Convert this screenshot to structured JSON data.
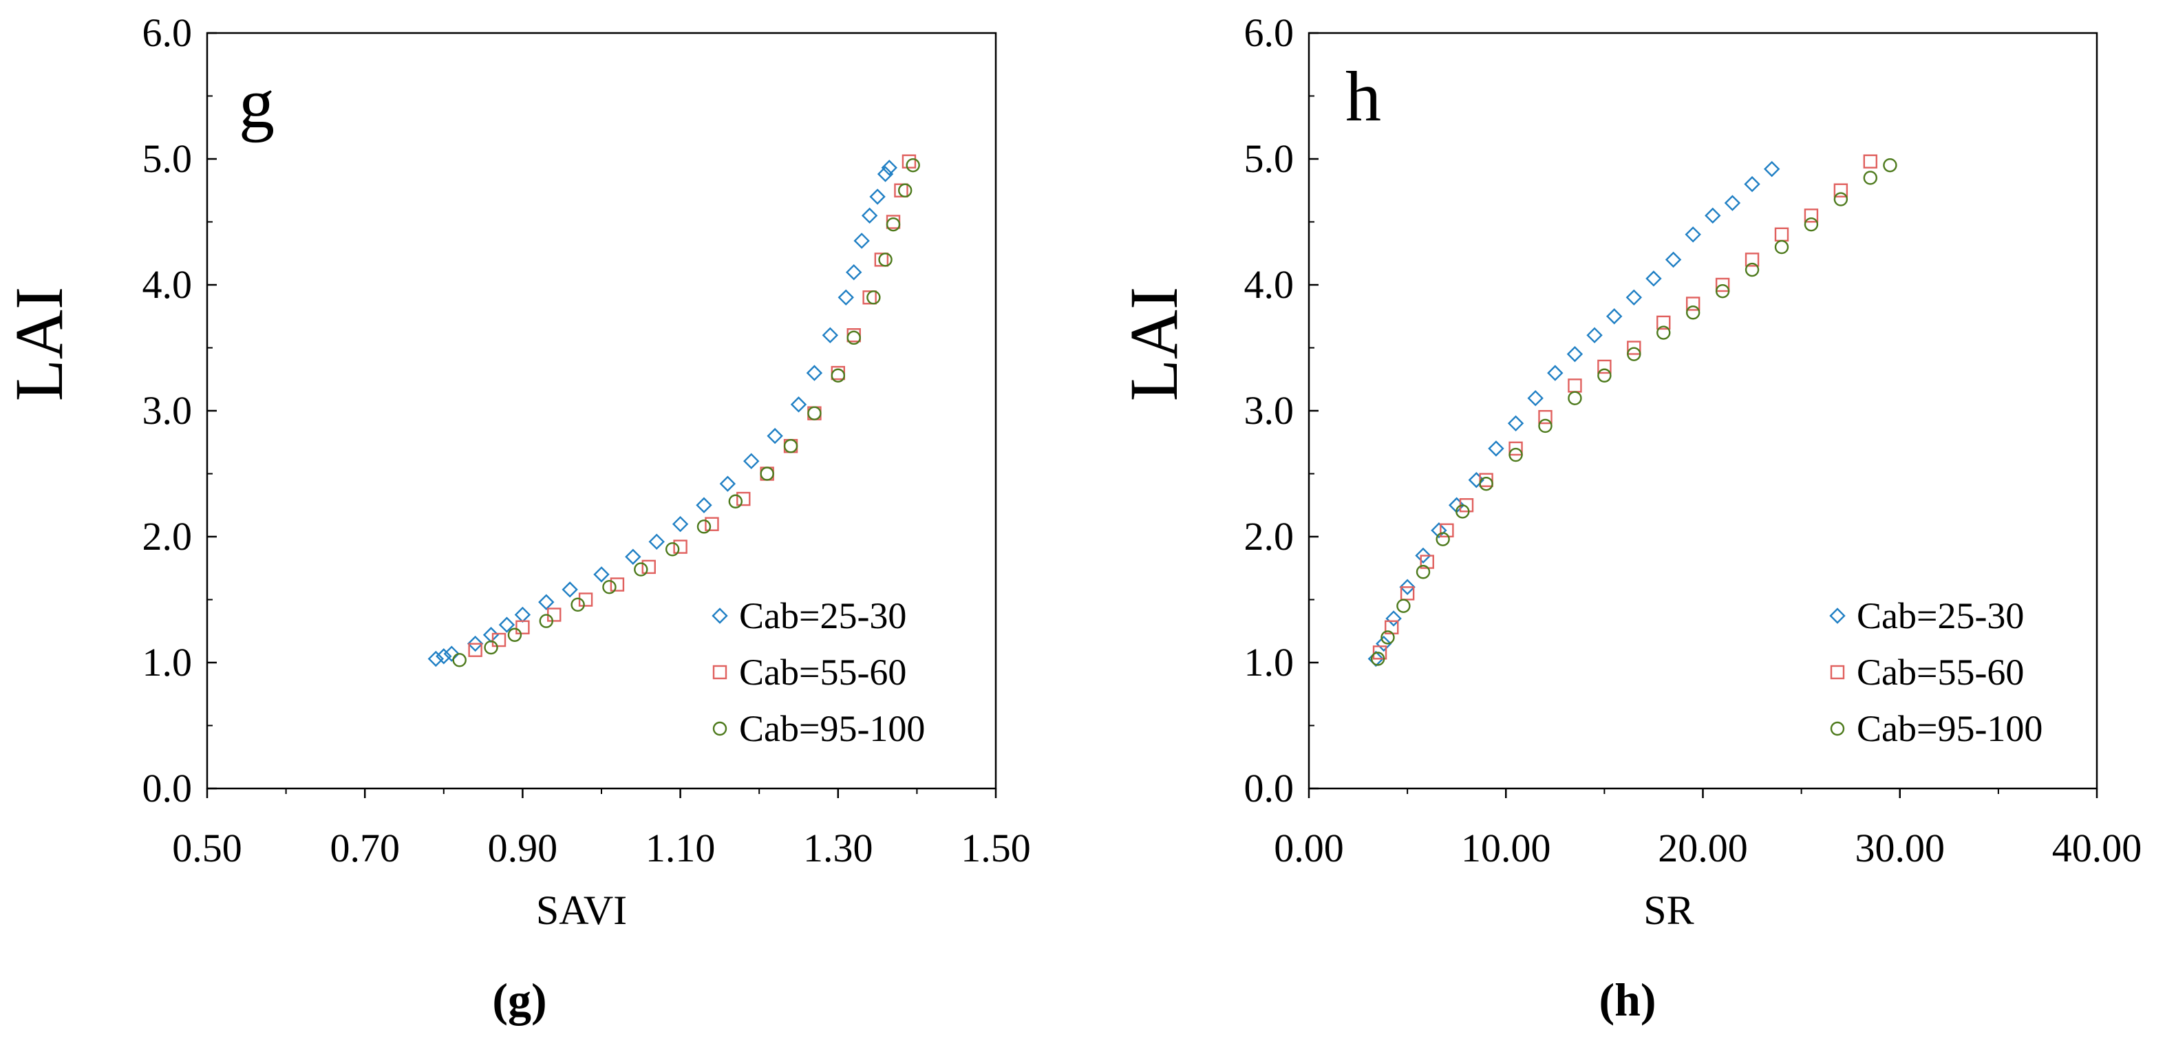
{
  "chart_data": [
    {
      "type": "scatter",
      "panel_label": "g",
      "caption": "(g)",
      "xlabel": "SAVI",
      "ylabel": "LAI",
      "xlim": [
        0.5,
        1.5
      ],
      "ylim": [
        0.0,
        6.0
      ],
      "xticks": [
        "0.50",
        "0.70",
        "0.90",
        "1.10",
        "1.30",
        "1.50"
      ],
      "yticks": [
        "0.0",
        "1.0",
        "2.0",
        "3.0",
        "4.0",
        "5.0",
        "6.0"
      ],
      "legend_position": "bottom-right",
      "series": [
        {
          "name": "Cab=25-30",
          "marker": "diamond",
          "color": "#1f7fc4",
          "points": [
            [
              0.79,
              1.03
            ],
            [
              0.8,
              1.05
            ],
            [
              0.81,
              1.07
            ],
            [
              0.84,
              1.15
            ],
            [
              0.86,
              1.22
            ],
            [
              0.88,
              1.3
            ],
            [
              0.9,
              1.38
            ],
            [
              0.93,
              1.48
            ],
            [
              0.96,
              1.58
            ],
            [
              1.0,
              1.7
            ],
            [
              1.04,
              1.84
            ],
            [
              1.07,
              1.96
            ],
            [
              1.1,
              2.1
            ],
            [
              1.13,
              2.25
            ],
            [
              1.16,
              2.42
            ],
            [
              1.19,
              2.6
            ],
            [
              1.22,
              2.8
            ],
            [
              1.25,
              3.05
            ],
            [
              1.27,
              3.3
            ],
            [
              1.29,
              3.6
            ],
            [
              1.31,
              3.9
            ],
            [
              1.32,
              4.1
            ],
            [
              1.33,
              4.35
            ],
            [
              1.34,
              4.55
            ],
            [
              1.35,
              4.7
            ],
            [
              1.36,
              4.88
            ],
            [
              1.365,
              4.93
            ]
          ]
        },
        {
          "name": "Cab=55-60",
          "marker": "square",
          "color": "#e0605e",
          "points": [
            [
              0.84,
              1.1
            ],
            [
              0.87,
              1.18
            ],
            [
              0.9,
              1.28
            ],
            [
              0.94,
              1.38
            ],
            [
              0.98,
              1.5
            ],
            [
              1.02,
              1.62
            ],
            [
              1.06,
              1.76
            ],
            [
              1.1,
              1.92
            ],
            [
              1.14,
              2.1
            ],
            [
              1.18,
              2.3
            ],
            [
              1.21,
              2.5
            ],
            [
              1.24,
              2.72
            ],
            [
              1.27,
              2.98
            ],
            [
              1.3,
              3.3
            ],
            [
              1.32,
              3.6
            ],
            [
              1.34,
              3.9
            ],
            [
              1.355,
              4.2
            ],
            [
              1.37,
              4.5
            ],
            [
              1.38,
              4.75
            ],
            [
              1.39,
              4.98
            ]
          ]
        },
        {
          "name": "Cab=95-100",
          "marker": "circle",
          "color": "#4d7a1c",
          "points": [
            [
              0.82,
              1.02
            ],
            [
              0.86,
              1.12
            ],
            [
              0.89,
              1.22
            ],
            [
              0.93,
              1.33
            ],
            [
              0.97,
              1.46
            ],
            [
              1.01,
              1.6
            ],
            [
              1.05,
              1.74
            ],
            [
              1.09,
              1.9
            ],
            [
              1.13,
              2.08
            ],
            [
              1.17,
              2.28
            ],
            [
              1.21,
              2.5
            ],
            [
              1.24,
              2.72
            ],
            [
              1.27,
              2.98
            ],
            [
              1.3,
              3.28
            ],
            [
              1.32,
              3.58
            ],
            [
              1.345,
              3.9
            ],
            [
              1.36,
              4.2
            ],
            [
              1.37,
              4.48
            ],
            [
              1.385,
              4.75
            ],
            [
              1.395,
              4.95
            ]
          ]
        }
      ]
    },
    {
      "type": "scatter",
      "panel_label": "h",
      "caption": "(h)",
      "xlabel": "SR",
      "ylabel": "LAI",
      "xlim": [
        0.0,
        40.0
      ],
      "ylim": [
        0.0,
        6.0
      ],
      "xticks": [
        "0.00",
        "10.00",
        "20.00",
        "30.00",
        "40.00"
      ],
      "yticks": [
        "0.0",
        "1.0",
        "2.0",
        "3.0",
        "4.0",
        "5.0",
        "6.0"
      ],
      "legend_position": "bottom-right",
      "series": [
        {
          "name": "Cab=25-30",
          "marker": "diamond",
          "color": "#1f7fc4",
          "points": [
            [
              3.4,
              1.03
            ],
            [
              3.8,
              1.15
            ],
            [
              4.3,
              1.35
            ],
            [
              5.0,
              1.6
            ],
            [
              5.8,
              1.85
            ],
            [
              6.6,
              2.05
            ],
            [
              7.5,
              2.25
            ],
            [
              8.5,
              2.45
            ],
            [
              9.5,
              2.7
            ],
            [
              10.5,
              2.9
            ],
            [
              11.5,
              3.1
            ],
            [
              12.5,
              3.3
            ],
            [
              13.5,
              3.45
            ],
            [
              14.5,
              3.6
            ],
            [
              15.5,
              3.75
            ],
            [
              16.5,
              3.9
            ],
            [
              17.5,
              4.05
            ],
            [
              18.5,
              4.2
            ],
            [
              19.5,
              4.4
            ],
            [
              20.5,
              4.55
            ],
            [
              21.5,
              4.65
            ],
            [
              22.5,
              4.8
            ],
            [
              23.5,
              4.92
            ]
          ]
        },
        {
          "name": "Cab=55-60",
          "marker": "square",
          "color": "#e0605e",
          "points": [
            [
              3.6,
              1.08
            ],
            [
              4.2,
              1.28
            ],
            [
              5.0,
              1.55
            ],
            [
              6.0,
              1.8
            ],
            [
              7.0,
              2.05
            ],
            [
              8.0,
              2.25
            ],
            [
              9.0,
              2.45
            ],
            [
              10.5,
              2.7
            ],
            [
              12.0,
              2.95
            ],
            [
              13.5,
              3.2
            ],
            [
              15.0,
              3.35
            ],
            [
              16.5,
              3.5
            ],
            [
              18.0,
              3.7
            ],
            [
              19.5,
              3.85
            ],
            [
              21.0,
              4.0
            ],
            [
              22.5,
              4.2
            ],
            [
              24.0,
              4.4
            ],
            [
              25.5,
              4.55
            ],
            [
              27.0,
              4.75
            ],
            [
              28.5,
              4.98
            ]
          ]
        },
        {
          "name": "Cab=95-100",
          "marker": "circle",
          "color": "#4d7a1c",
          "points": [
            [
              3.5,
              1.03
            ],
            [
              4.0,
              1.2
            ],
            [
              4.8,
              1.45
            ],
            [
              5.8,
              1.72
            ],
            [
              6.8,
              1.98
            ],
            [
              7.8,
              2.2
            ],
            [
              9.0,
              2.42
            ],
            [
              10.5,
              2.65
            ],
            [
              12.0,
              2.88
            ],
            [
              13.5,
              3.1
            ],
            [
              15.0,
              3.28
            ],
            [
              16.5,
              3.45
            ],
            [
              18.0,
              3.62
            ],
            [
              19.5,
              3.78
            ],
            [
              21.0,
              3.95
            ],
            [
              22.5,
              4.12
            ],
            [
              24.0,
              4.3
            ],
            [
              25.5,
              4.48
            ],
            [
              27.0,
              4.68
            ],
            [
              28.5,
              4.85
            ],
            [
              29.5,
              4.95
            ]
          ]
        }
      ]
    }
  ]
}
